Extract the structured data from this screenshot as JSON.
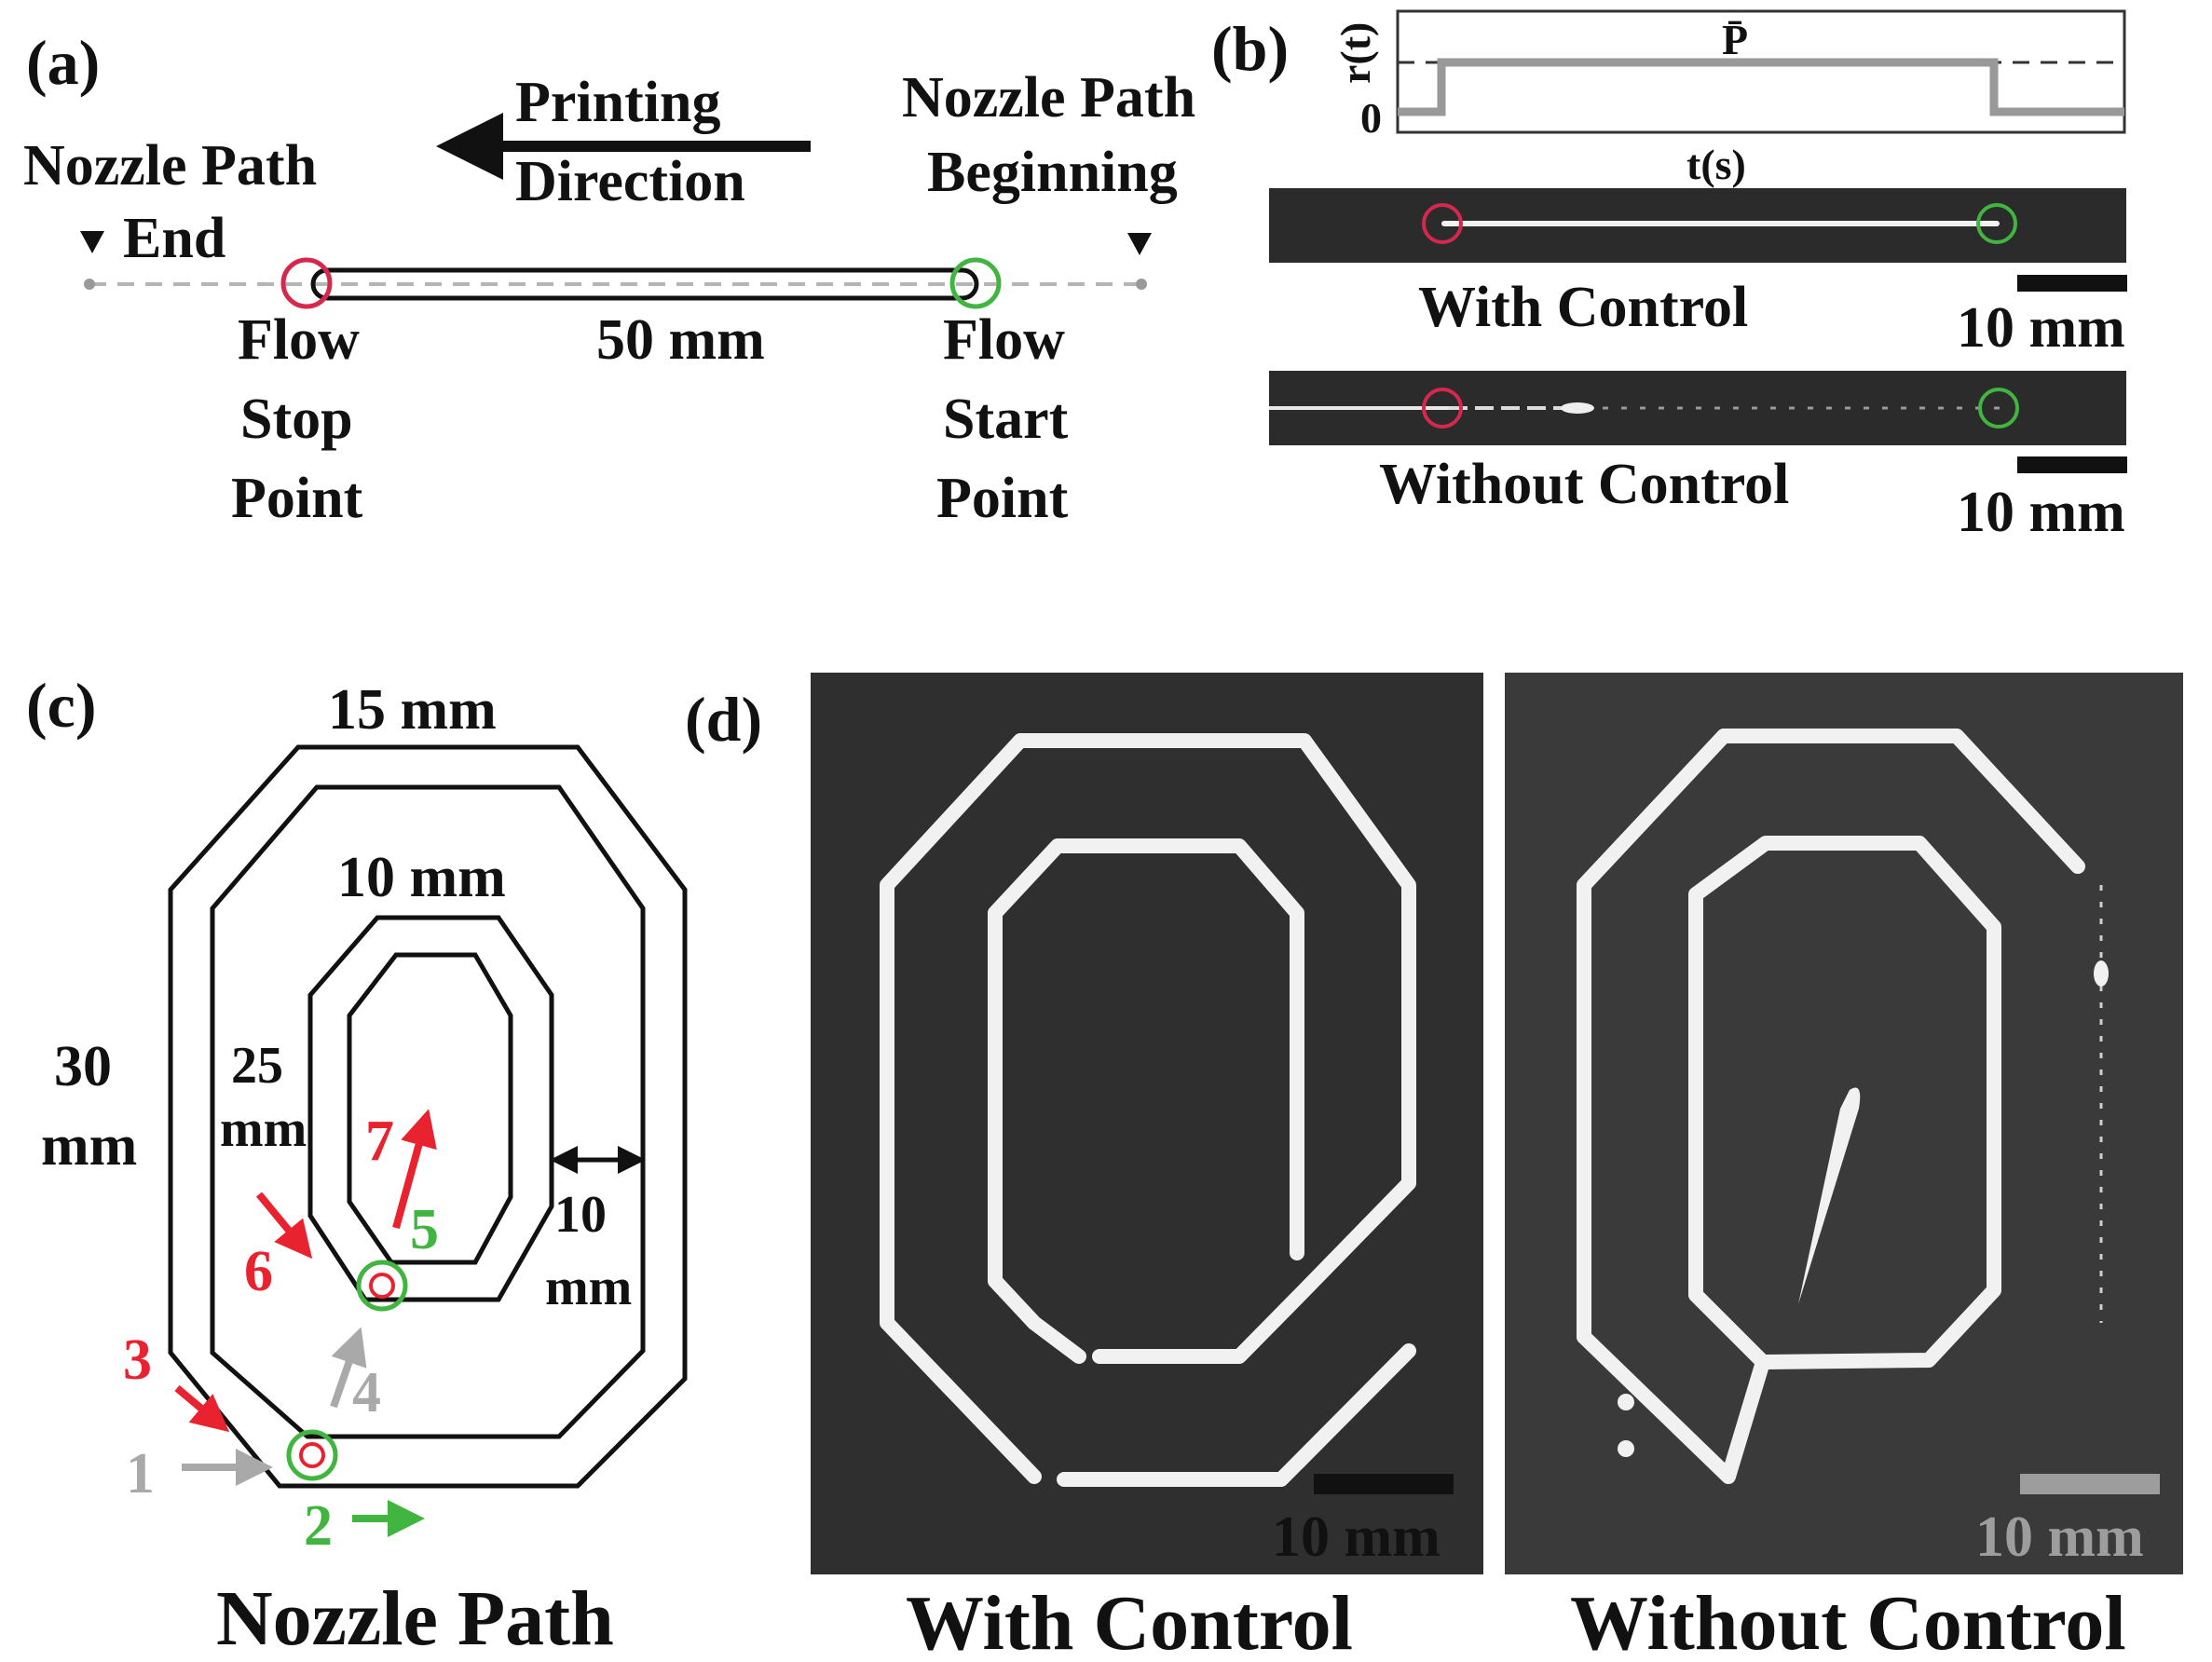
{
  "colors": {
    "stop_marker": "#d6284d",
    "start_marker": "#41b53f",
    "segment_gray": "#a9a9a9",
    "photo_bg": "#2b2b2b",
    "ink": "#111111"
  },
  "panel_a": {
    "label": "(a)",
    "nozzle_path_end_line1": "Nozzle Path",
    "nozzle_path_end_line2": "End",
    "printing_direction_line1": "Printing",
    "printing_direction_line2": "Direction",
    "nozzle_path_beginning_line1": "Nozzle Path",
    "nozzle_path_beginning_line2": "Beginning",
    "length": "50 mm",
    "flow_stop": [
      "Flow",
      "Stop",
      "Point"
    ],
    "flow_start": [
      "Flow",
      "Start",
      "Point"
    ]
  },
  "panel_b": {
    "label": "(b)",
    "y_axis_label": "r(t)",
    "y_zero": "0",
    "level_label": "P̄",
    "x_axis_label": "t(s)",
    "with_control": "With Control",
    "without_control": "Without Control",
    "scale_bar_1": "10 mm",
    "scale_bar_2": "10 mm"
  },
  "panel_c": {
    "label": "(c)",
    "dim_outer_width": "15 mm",
    "dim_inner_width": "10 mm",
    "dim_outer_height_line1": "30",
    "dim_outer_height_line2": "mm",
    "dim_inner_height_line1": "25",
    "dim_inner_height_line2": "mm",
    "dim_gap_line1": "10",
    "dim_gap_line2": "mm",
    "steps": [
      "1",
      "2",
      "3",
      "4",
      "5",
      "6",
      "7"
    ],
    "caption": "Nozzle Path"
  },
  "panel_d": {
    "label": "(d)",
    "left_caption": "With Control",
    "right_caption": "Without Control",
    "scale_bar_left": "10 mm",
    "scale_bar_right": "10 mm"
  }
}
